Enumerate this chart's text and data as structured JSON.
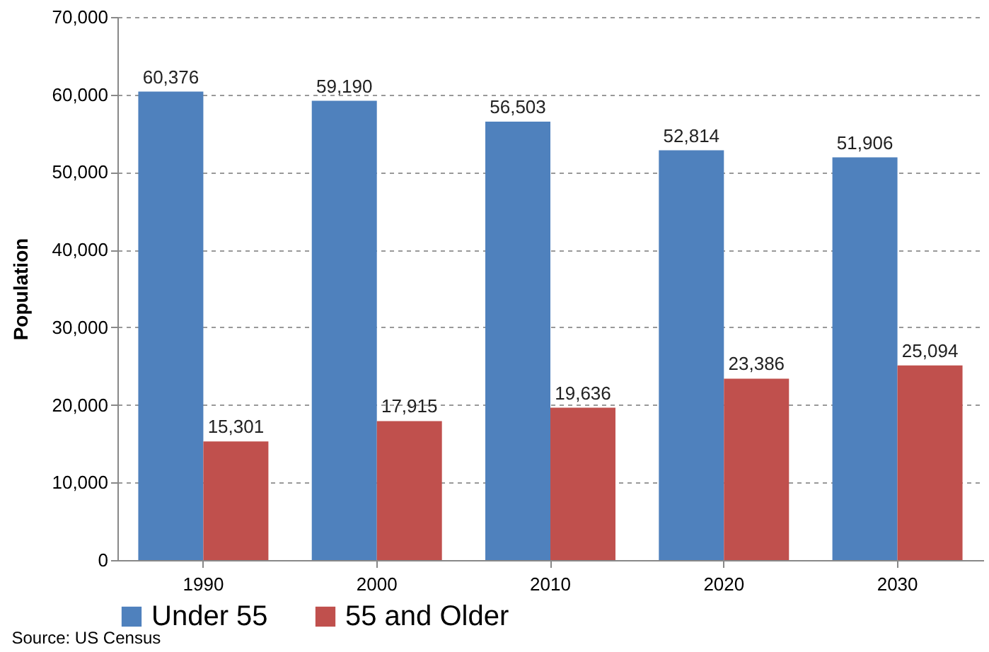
{
  "chart_data": {
    "type": "bar",
    "ylabel": "Population",
    "categories": [
      "1990",
      "2000",
      "2010",
      "2020",
      "2030"
    ],
    "series": [
      {
        "name": "Under 55",
        "color": "#4f81bd",
        "values": [
          60376,
          59190,
          56503,
          52814,
          51906
        ],
        "value_labels": [
          "60,376",
          "59,190",
          "56,503",
          "52,814",
          "51,906"
        ]
      },
      {
        "name": "55 and Older",
        "color": "#c0504d",
        "values": [
          15301,
          17915,
          19636,
          23386,
          25094
        ],
        "value_labels": [
          "15,301",
          "17,915",
          "19,636",
          "23,386",
          "25,094"
        ]
      }
    ],
    "ylim": [
      0,
      70000
    ],
    "yticks": [
      0,
      {
        "value": 10000,
        "label": "10,000"
      },
      {
        "value": 20000,
        "label": "20,000"
      },
      {
        "value": 30000,
        "label": "30,000"
      },
      {
        "value": 40000,
        "label": "40,000"
      },
      {
        "value": 50000,
        "label": "50,000"
      },
      {
        "value": 60000,
        "label": "60,000"
      },
      {
        "value": 70000,
        "label": "70,000"
      }
    ],
    "grid": "y",
    "legend": "bottom",
    "annotations": [
      "Source: US Census"
    ]
  }
}
